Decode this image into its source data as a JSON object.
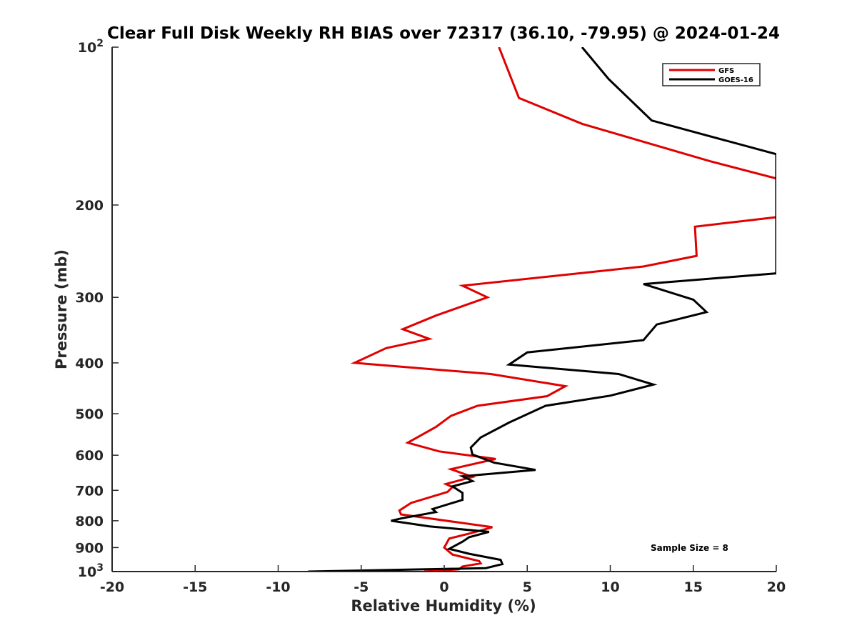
{
  "chart_data": {
    "type": "line",
    "title": "Clear Full Disk Weekly RH BIAS over 72317 (36.10, -79.95) @ 2024-01-24",
    "xlabel": "Relative Humidity (%)",
    "ylabel": "Pressure (mb)",
    "xlim": [
      -20,
      20
    ],
    "ylim": [
      100,
      1000
    ],
    "y_scale": "log",
    "y_reversed": true,
    "grid": false,
    "legend_position": "top-right",
    "x_ticks": [
      "-20",
      "-15",
      "-10",
      "-5",
      "0",
      "5",
      "10",
      "15",
      "20"
    ],
    "y_ticks": [
      {
        "value": 100,
        "base": "10",
        "exp": "2"
      },
      {
        "value": 200,
        "label": "200"
      },
      {
        "value": 300,
        "label": "300"
      },
      {
        "value": 400,
        "label": "400"
      },
      {
        "value": 500,
        "label": "500"
      },
      {
        "value": 600,
        "label": "600"
      },
      {
        "value": 700,
        "label": "700"
      },
      {
        "value": 800,
        "label": "800"
      },
      {
        "value": 900,
        "label": "900"
      },
      {
        "value": 1000,
        "base": "10",
        "exp": "3"
      }
    ],
    "series": [
      {
        "name": "GFS",
        "color": "#e00000",
        "points": [
          [
            3.3,
            100
          ],
          [
            4.5,
            125
          ],
          [
            8.3,
            140
          ],
          [
            16.0,
            165
          ],
          [
            20.0,
            178
          ],
          [
            20.0,
            211
          ],
          [
            15.1,
            220
          ],
          [
            15.2,
            250
          ],
          [
            12.0,
            262
          ],
          [
            1.1,
            285
          ],
          [
            2.6,
            300
          ],
          [
            -0.5,
            325
          ],
          [
            -2.5,
            345
          ],
          [
            -0.9,
            360
          ],
          [
            -3.5,
            375
          ],
          [
            -5.4,
            400
          ],
          [
            2.8,
            420
          ],
          [
            7.3,
            443
          ],
          [
            6.2,
            463
          ],
          [
            2.0,
            483
          ],
          [
            0.4,
            505
          ],
          [
            -0.5,
            530
          ],
          [
            -2.2,
            568
          ],
          [
            -0.3,
            590
          ],
          [
            3.1,
            610
          ],
          [
            0.4,
            638
          ],
          [
            1.7,
            660
          ],
          [
            0.1,
            681
          ],
          [
            0.5,
            690
          ],
          [
            0.2,
            705
          ],
          [
            -2.0,
            740
          ],
          [
            -2.7,
            765
          ],
          [
            -2.6,
            778
          ],
          [
            2.9,
            823
          ],
          [
            1.6,
            845
          ],
          [
            0.3,
            865
          ],
          [
            0.0,
            900
          ],
          [
            0.5,
            928
          ],
          [
            2.1,
            955
          ],
          [
            2.2,
            965
          ],
          [
            1.1,
            978
          ],
          [
            0.9,
            990
          ],
          [
            -1.2,
            1000
          ]
        ]
      },
      {
        "name": "GOES-16",
        "color": "#000000",
        "points": [
          [
            8.3,
            100
          ],
          [
            9.9,
            115
          ],
          [
            12.5,
            138
          ],
          [
            20.0,
            160
          ],
          [
            20.0,
            270
          ],
          [
            12.0,
            283
          ],
          [
            15.0,
            303
          ],
          [
            15.8,
            320
          ],
          [
            12.8,
            338
          ],
          [
            12.0,
            362
          ],
          [
            5.0,
            382
          ],
          [
            3.9,
            403
          ],
          [
            10.5,
            420
          ],
          [
            12.6,
            440
          ],
          [
            10.0,
            462
          ],
          [
            6.1,
            483
          ],
          [
            3.9,
            520
          ],
          [
            2.2,
            555
          ],
          [
            1.6,
            580
          ],
          [
            1.7,
            598
          ],
          [
            3.0,
            620
          ],
          [
            5.5,
            640
          ],
          [
            1.1,
            658
          ],
          [
            1.7,
            672
          ],
          [
            0.5,
            688
          ],
          [
            1.1,
            708
          ],
          [
            1.1,
            730
          ],
          [
            -0.7,
            760
          ],
          [
            -0.5,
            770
          ],
          [
            -2.6,
            792
          ],
          [
            -3.2,
            800
          ],
          [
            -0.9,
            820
          ],
          [
            2.7,
            840
          ],
          [
            1.5,
            860
          ],
          [
            1.1,
            877
          ],
          [
            0.3,
            905
          ],
          [
            1.5,
            925
          ],
          [
            3.4,
            950
          ],
          [
            3.5,
            968
          ],
          [
            2.5,
            985
          ],
          [
            -8.2,
            1000
          ]
        ]
      }
    ],
    "annotation": "Sample Size = 8"
  }
}
